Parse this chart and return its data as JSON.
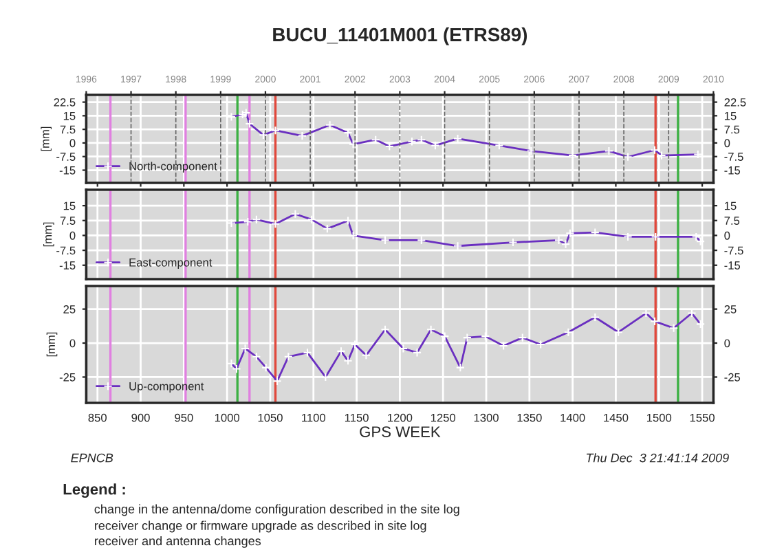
{
  "chart_data": [
    {
      "type": "line",
      "title": "BUCU_11401M001 (ETRS89)",
      "ylabel": "[mm]",
      "marker": "cross",
      "grid": true,
      "legend": "bottom left",
      "tick_labels": "y",
      "xlim": [
        837,
        1563
      ],
      "ylim": [
        -22,
        26.5
      ],
      "yticks": [
        22.5,
        15,
        7.5,
        0,
        -7.5,
        -15
      ],
      "y2lim": [
        -22,
        26.5
      ],
      "y2ticks": [
        22.5,
        15,
        7.5,
        0,
        -7.5,
        -15
      ],
      "x2lim": [
        1996,
        2010
      ],
      "x2ticks": [
        1996,
        1997,
        1998,
        1999,
        2000,
        2001,
        2002,
        2003,
        2004,
        2005,
        2006,
        2007,
        2008,
        2009,
        2010
      ],
      "xticks": [
        850,
        900,
        950,
        1000,
        1050,
        1100,
        1150,
        1200,
        1250,
        1300,
        1350,
        1400,
        1450,
        1500,
        1550
      ],
      "x": [
        1005,
        1018,
        1022,
        1026,
        1042,
        1056,
        1087,
        1119,
        1140,
        1146,
        1172,
        1188,
        1214,
        1225,
        1241,
        1267,
        1315,
        1352,
        1400,
        1442,
        1464,
        1495,
        1503,
        1545
      ],
      "series": [
        {
          "name": "North-component",
          "color": "#6a2fc0",
          "values": [
            14.4,
            15.7,
            16.6,
            10.6,
            4.4,
            6.9,
            3.9,
            9.9,
            5.6,
            -0.7,
            1.8,
            -1.9,
            0.8,
            1.8,
            -1.4,
            2.4,
            -1.4,
            -4.4,
            -6.9,
            -4.4,
            -7.7,
            -3.9,
            -6.9,
            -6.3
          ]
        }
      ],
      "ref_lines": [
        {
          "axis": "x",
          "value": 865,
          "color": "#e080e0"
        },
        {
          "axis": "x",
          "value": 952,
          "color": "#e080e0"
        },
        {
          "axis": "x",
          "value": 1026,
          "color": "#e080e0"
        },
        {
          "axis": "x",
          "value": 1012,
          "color": "#3cb043"
        },
        {
          "axis": "x",
          "value": 1056,
          "color": "#e0483c"
        },
        {
          "axis": "x",
          "value": 1496,
          "color": "#e0483c"
        },
        {
          "axis": "x",
          "value": 1522,
          "color": "#3cb043"
        }
      ]
    },
    {
      "type": "line",
      "ylabel": "[mm]",
      "marker": "cross",
      "grid": true,
      "legend": "bottom left",
      "tick_labels": "y",
      "xlim": [
        837,
        1563
      ],
      "ylim": [
        -22,
        23
      ],
      "yticks": [
        15,
        7.5,
        0,
        -7.5,
        -15
      ],
      "y2lim": [
        -22,
        23
      ],
      "y2ticks": [
        15,
        7.5,
        0,
        -7.5,
        -15
      ],
      "xticks": [
        850,
        900,
        950,
        1000,
        1050,
        1100,
        1150,
        1200,
        1250,
        1300,
        1350,
        1400,
        1450,
        1500,
        1550
      ],
      "x": [
        1005,
        1024,
        1034,
        1056,
        1079,
        1098,
        1116,
        1140,
        1146,
        1183,
        1225,
        1267,
        1331,
        1384,
        1392,
        1397,
        1426,
        1464,
        1496,
        1543,
        1548
      ],
      "series": [
        {
          "name": "East-component",
          "color": "#6a2fc0",
          "values": [
            6.2,
            6.9,
            8,
            5.8,
            10.8,
            8,
            3.4,
            7.4,
            -0.1,
            -2.4,
            -2.4,
            -5.3,
            -3.5,
            -2.4,
            -4.4,
            1.1,
            1.5,
            -0.7,
            -0.7,
            -0.7,
            -3
          ]
        }
      ],
      "ref_lines": [
        {
          "axis": "x",
          "value": 865,
          "color": "#e080e0"
        },
        {
          "axis": "x",
          "value": 952,
          "color": "#e080e0"
        },
        {
          "axis": "x",
          "value": 1026,
          "color": "#e080e0"
        },
        {
          "axis": "x",
          "value": 1012,
          "color": "#3cb043"
        },
        {
          "axis": "x",
          "value": 1056,
          "color": "#e0483c"
        },
        {
          "axis": "x",
          "value": 1496,
          "color": "#e0483c"
        },
        {
          "axis": "x",
          "value": 1522,
          "color": "#3cb043"
        }
      ]
    },
    {
      "type": "line",
      "ylabel": "[mm]",
      "xlabel": "GPS WEEK",
      "marker": "cross",
      "grid": true,
      "legend": "bottom left",
      "xlim": [
        837,
        1563
      ],
      "ylim": [
        -44,
        42
      ],
      "yticks": [
        25,
        0,
        -25
      ],
      "y2lim": [
        -44,
        42
      ],
      "y2ticks": [
        25,
        0,
        -25
      ],
      "xticks": [
        850,
        900,
        950,
        1000,
        1050,
        1100,
        1150,
        1200,
        1250,
        1300,
        1350,
        1400,
        1450,
        1500,
        1550
      ],
      "x": [
        1005,
        1011,
        1021,
        1034,
        1045,
        1058,
        1071,
        1093,
        1114,
        1132,
        1140,
        1148,
        1161,
        1183,
        1204,
        1220,
        1236,
        1252,
        1270,
        1278,
        1299,
        1320,
        1342,
        1363,
        1395,
        1426,
        1453,
        1485,
        1495,
        1517,
        1538,
        1548
      ],
      "series": [
        {
          "name": "Up-component",
          "color": "#6a2fc0",
          "values": [
            -15,
            -19,
            -4,
            -10,
            -18,
            -28,
            -10,
            -7,
            -25,
            -6,
            -13,
            -1,
            -9,
            10,
            -4,
            -7,
            10,
            5,
            -18,
            4,
            5,
            -2,
            4,
            -1,
            8,
            19,
            8,
            22,
            16,
            11,
            22,
            14
          ]
        }
      ],
      "ref_lines": [
        {
          "axis": "x",
          "value": 865,
          "color": "#e080e0"
        },
        {
          "axis": "x",
          "value": 952,
          "color": "#e080e0"
        },
        {
          "axis": "x",
          "value": 1026,
          "color": "#e080e0"
        },
        {
          "axis": "x",
          "value": 1012,
          "color": "#3cb043"
        },
        {
          "axis": "x",
          "value": 1056,
          "color": "#e0483c"
        },
        {
          "axis": "x",
          "value": 1496,
          "color": "#e0483c"
        },
        {
          "axis": "x",
          "value": 1522,
          "color": "#3cb043"
        }
      ],
      "annotations": [
        "EPNCB",
        "Thu Dec  3 21:41:14 2009",
        "Legend :",
        "change in the antenna/dome configuration described in the site log",
        "receiver change or firmware upgrade as described in site log",
        "receiver and antenna changes"
      ]
    }
  ]
}
